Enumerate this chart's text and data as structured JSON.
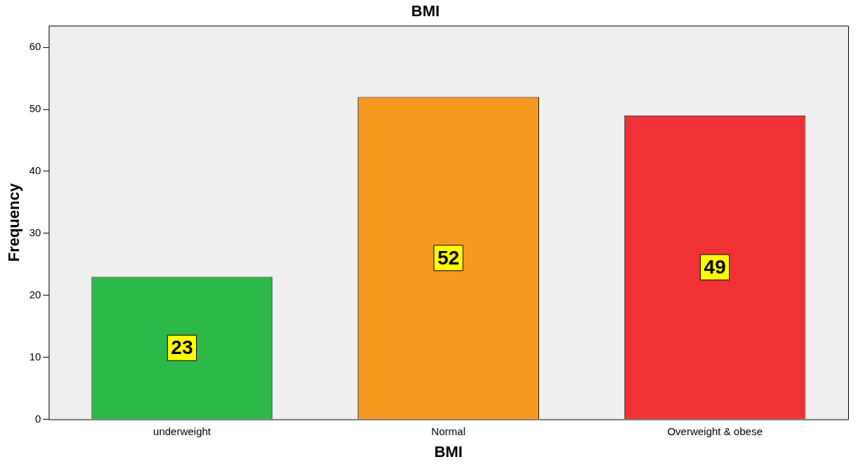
{
  "chart_data": {
    "type": "bar",
    "title": "BMI",
    "xlabel": "BMI",
    "ylabel": "Frequency",
    "categories": [
      "underweight",
      "Normal",
      "Overweight & obese"
    ],
    "values": [
      23,
      52,
      49
    ],
    "colors": [
      "#2db84a",
      "#f7981f",
      "#f03237"
    ],
    "ylim": [
      0,
      63.5
    ],
    "yticks": [
      0,
      10,
      20,
      30,
      40,
      50,
      60
    ],
    "grid": false,
    "legend": false,
    "data_labels": true
  }
}
